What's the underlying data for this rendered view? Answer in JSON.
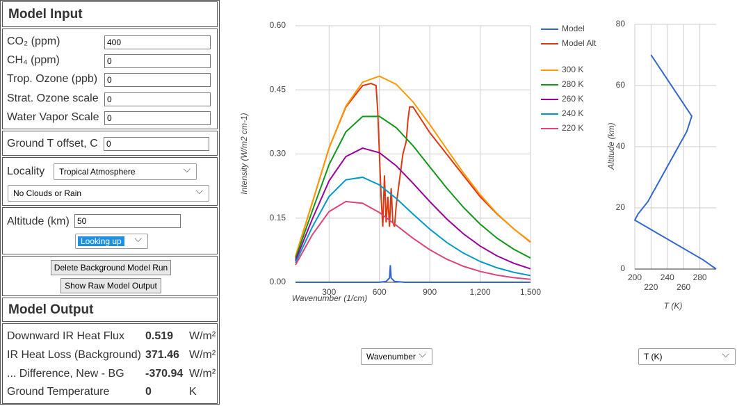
{
  "model_input": {
    "title": "Model Input",
    "gases": [
      {
        "label": "CO₂ (ppm)",
        "value": "400"
      },
      {
        "label": "CH₄ (ppm)",
        "value": "0"
      },
      {
        "label": "Trop. Ozone (ppb)",
        "value": "0"
      },
      {
        "label": "Strat. Ozone scale",
        "value": "0"
      },
      {
        "label": "Water Vapor Scale",
        "value": "0"
      }
    ],
    "ground_offset": {
      "label": "Ground T offset, C",
      "value": "0"
    },
    "locality": {
      "label": "Locality",
      "value": "Tropical Atmosphere"
    },
    "clouds": "No Clouds or Rain",
    "altitude": {
      "label": "Altitude (km)",
      "value": "50"
    },
    "direction": "Looking up",
    "buttons": [
      "Delete Background Model Run",
      "Show Raw Model Output"
    ]
  },
  "model_output": {
    "title": "Model Output",
    "rows": [
      {
        "label": "Downward IR Heat Flux",
        "value": "0.519",
        "unit": "W/m²"
      },
      {
        "label": "IR Heat Loss (Background)",
        "value": "371.46",
        "unit": "W/m²"
      },
      {
        "label": "... Difference, New - BG",
        "value": "-370.94",
        "unit": "W/m²"
      },
      {
        "label": "Ground Temperature",
        "value": "0",
        "unit": "K"
      }
    ]
  },
  "x_selector": "Wavenumber",
  "y_selector": "T (K)",
  "chart_data": [
    {
      "type": "line",
      "xlabel": "Wavenumber (1/cm)",
      "ylabel": "Intensity (W/m2 cm-1)",
      "grid": true,
      "xlim": [
        100,
        1500
      ],
      "xticks": [
        300,
        600,
        900,
        {
          "value": 1200,
          "label": "1,200"
        },
        {
          "value": 1500,
          "label": "1,500"
        }
      ],
      "ylim": [
        0,
        0.6
      ],
      "yticks": [
        {
          "value": 0,
          "label": "0.00"
        },
        {
          "value": 0.15,
          "label": "0.15"
        },
        {
          "value": 0.3,
          "label": "0.30"
        },
        {
          "value": 0.45,
          "label": "0.45"
        },
        {
          "value": 0.6,
          "label": "0.60"
        }
      ],
      "x": [
        100,
        200,
        300,
        400,
        500,
        600,
        700,
        800,
        900,
        1000,
        1100,
        1200,
        1300,
        1400,
        1500
      ],
      "series": [
        {
          "name": "Model",
          "color": "#3366cc",
          "x": [
            100,
            600,
            640,
            660,
            665,
            670,
            690,
            750,
            1500
          ],
          "values": [
            0,
            0,
            0.002,
            0.01,
            0.04,
            0.01,
            0.002,
            0,
            0
          ]
        },
        {
          "name": "Model Alt",
          "color": "#dc3912",
          "x": [
            100,
            200,
            300,
            400,
            500,
            550,
            580,
            590,
            600,
            610,
            620,
            630,
            640,
            650,
            660,
            670,
            680,
            690,
            700,
            720,
            740,
            760,
            770,
            780,
            800,
            850,
            900,
            1000,
            1100,
            1200,
            1300,
            1400,
            1500
          ],
          "values": [
            0.06,
            0.186,
            0.314,
            0.41,
            0.46,
            0.465,
            0.46,
            0.4,
            0.3,
            0.2,
            0.13,
            0.25,
            0.14,
            0.2,
            0.13,
            0.22,
            0.14,
            0.13,
            0.18,
            0.24,
            0.3,
            0.33,
            0.38,
            0.41,
            0.41,
            0.38,
            0.35,
            0.3,
            0.25,
            0.2,
            0.16,
            0.125,
            0.094
          ]
        },
        {
          "name": "300 K",
          "color": "#ff9900",
          "values": [
            0.0608,
            0.186,
            0.314,
            0.412,
            0.468,
            0.482,
            0.463,
            0.422,
            0.369,
            0.312,
            0.256,
            0.205,
            0.161,
            0.125,
            0.0949
          ]
        },
        {
          "name": "280 K",
          "color": "#109618",
          "values": [
            0.0557,
            0.1668,
            0.2751,
            0.3516,
            0.3879,
            0.388,
            0.3616,
            0.3193,
            0.27,
            0.2207,
            0.1754,
            0.136,
            0.1033,
            0.0772,
            0.0567
          ]
        },
        {
          "name": "260 K",
          "color": "#990099",
          "values": [
            0.0506,
            0.1478,
            0.2371,
            0.2939,
            0.3137,
            0.303,
            0.2724,
            0.2316,
            0.1888,
            0.1484,
            0.1134,
            0.0846,
            0.0618,
            0.0444,
            0.0314
          ]
        },
        {
          "name": "240 K",
          "color": "#0099c6",
          "values": [
            0.0455,
            0.1292,
            0.2004,
            0.2395,
            0.2456,
            0.2277,
            0.1961,
            0.1596,
            0.1243,
            0.0934,
            0.0682,
            0.0486,
            0.0339,
            0.0233,
            0.0157
          ]
        },
        {
          "name": "220 K",
          "color": "#dd4477",
          "values": [
            0.0405,
            0.1109,
            0.1653,
            0.1888,
            0.1848,
            0.163,
            0.1333,
            0.1029,
            0.076,
            0.0541,
            0.0374,
            0.0253,
            0.0167,
            0.0108,
            0.0069
          ]
        }
      ]
    },
    {
      "type": "line",
      "xlabel": "T (K)",
      "ylabel": "Altitude (km)",
      "grid": true,
      "xlim": [
        200,
        300
      ],
      "xticks": [
        200,
        220,
        240,
        260,
        280
      ],
      "ylim": [
        0,
        80
      ],
      "yticks": [
        0,
        20,
        40,
        60,
        80
      ],
      "x": [
        300,
        284,
        200,
        204,
        216,
        264,
        270,
        220
      ],
      "series": [
        {
          "color": "#3366cc",
          "values": [
            0,
            3,
            16,
            18,
            22,
            45,
            50,
            70
          ]
        }
      ]
    }
  ]
}
